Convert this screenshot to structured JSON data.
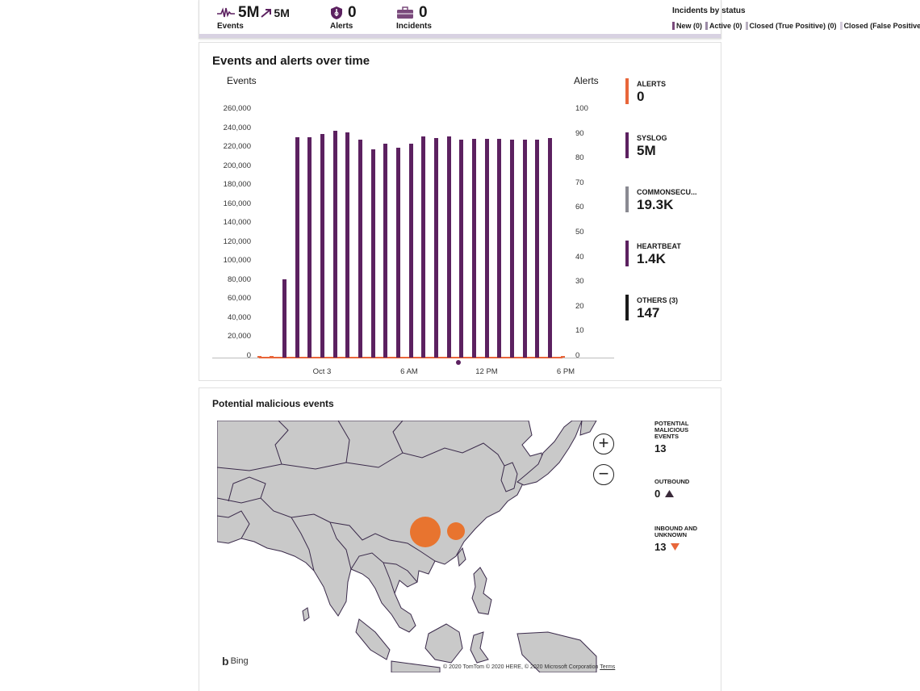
{
  "summary": {
    "events": {
      "value": "5M",
      "trend_value": "5M",
      "label": "Events",
      "trend_icon": "trend-up-arrow-icon"
    },
    "alerts": {
      "value": "0",
      "label": "Alerts",
      "icon": "shield-icon"
    },
    "incidents": {
      "value": "0",
      "label": "Incidents",
      "icon": "briefcase-icon"
    },
    "incidents_by_status": {
      "title": "Incidents by status",
      "items": [
        {
          "label": "New (0)",
          "color": "#7a4a7c"
        },
        {
          "label": "Active (0)",
          "color": "#9b8ba6"
        },
        {
          "label": "Closed (True Positive) (0)",
          "color": "#b9b0c0"
        },
        {
          "label": "Closed (False Positive",
          "color": "#d4ccdb"
        }
      ]
    }
  },
  "events_panel": {
    "title": "Events and alerts over time",
    "legend": [
      {
        "name": "ALERTS",
        "value": "0",
        "color": "#e8663a"
      },
      {
        "name": "SYSLOG",
        "value": "5M",
        "color": "#5c2160"
      },
      {
        "name": "COMMONSECU...",
        "value": "19.3K",
        "color": "#8a8a92"
      },
      {
        "name": "HEARTBEAT",
        "value": "1.4K",
        "color": "#5c2160"
      },
      {
        "name": "OTHERS (3)",
        "value": "147",
        "color": "#1a1a1a"
      }
    ]
  },
  "chart_data": {
    "type": "bar",
    "title": "Events and alerts over time",
    "ylabel": "Events",
    "y2label": "Alerts",
    "ylim": [
      0,
      260000
    ],
    "y2lim": [
      0,
      100
    ],
    "yticks": [
      "260,000",
      "240,000",
      "220,000",
      "200,000",
      "180,000",
      "160,000",
      "140,000",
      "120,000",
      "100,000",
      "80,000",
      "60,000",
      "40,000",
      "20,000",
      "0"
    ],
    "y2ticks": [
      "100",
      "90",
      "80",
      "70",
      "60",
      "50",
      "40",
      "30",
      "20",
      "10",
      "0"
    ],
    "xticks": [
      "Oct 3",
      "6 AM",
      "12 PM",
      "6 PM"
    ],
    "series": [
      {
        "name": "Events",
        "values": [
          0,
          0,
          82000,
          232000,
          232000,
          235000,
          239000,
          237000,
          229000,
          219000,
          225000,
          221000,
          225000,
          233000,
          231000,
          233000,
          229000,
          230000,
          230000,
          230000,
          229000,
          229000,
          229000,
          231000,
          0
        ]
      },
      {
        "name": "Alerts",
        "values": [
          0,
          0,
          0,
          0,
          0,
          0,
          0,
          0,
          0,
          0,
          0,
          0,
          0,
          0,
          0,
          0,
          0,
          0,
          0,
          0,
          0,
          0,
          0,
          0,
          0
        ]
      }
    ],
    "legend": "right",
    "grid": false
  },
  "malicious_panel": {
    "title": "Potential malicious events",
    "stats": [
      {
        "name": "POTENTIAL MALICIOUS EVENTS",
        "value": "13"
      },
      {
        "name": "OUTBOUND",
        "value": "0",
        "indicator": "triangle-up-icon",
        "color": "#3a2a3a"
      },
      {
        "name": "INBOUND AND UNKNOWN",
        "value": "13",
        "indicator": "triangle-down-icon",
        "color": "#e8663a"
      }
    ],
    "map": {
      "zoom_in": "+",
      "zoom_out": "−",
      "brand": "Bing",
      "copyright": "© 2020 TomTom © 2020 HERE, © 2020 Microsoft Corporation",
      "terms": "Terms",
      "bubble_color": "#e8742f"
    }
  }
}
